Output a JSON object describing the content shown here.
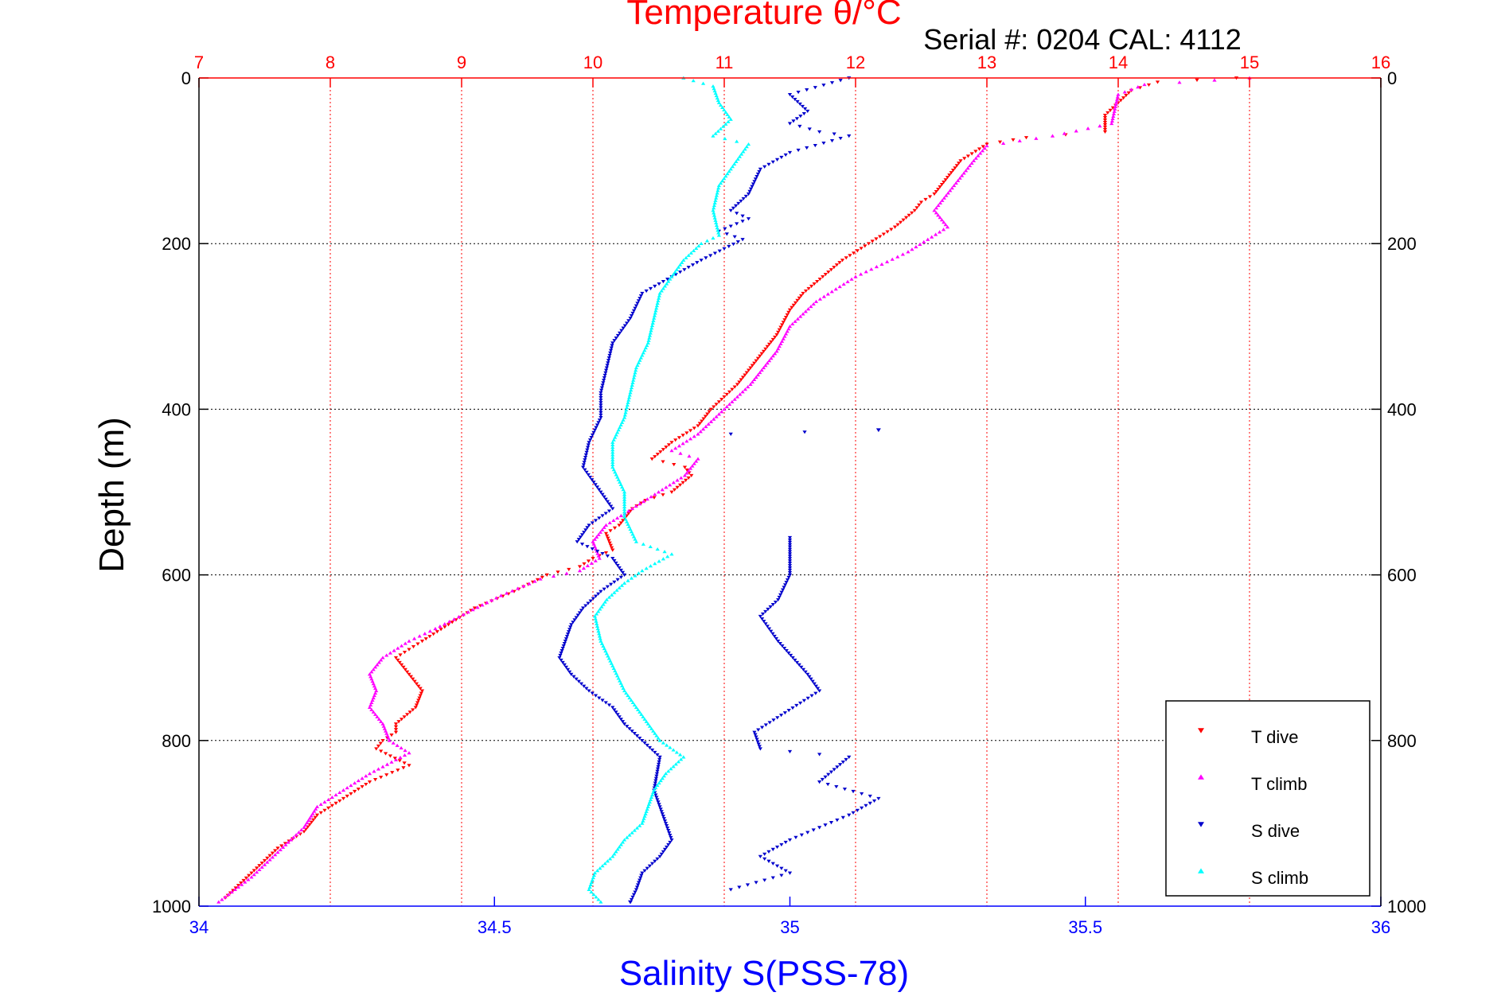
{
  "chart_data": {
    "type": "scatter",
    "title": "Temperature θ/°C",
    "subtitle": "Serial #: 0204  CAL: 4112",
    "xlabel": "Salinity S(PSS-78)",
    "ylabel": "Depth (m)",
    "x_temperature": {
      "lim": [
        7,
        16
      ],
      "ticks": [
        "7",
        "8",
        "9",
        "10",
        "11",
        "12",
        "13",
        "14",
        "15",
        "16"
      ]
    },
    "x_salinity": {
      "lim": [
        34,
        36
      ],
      "ticks": [
        "34",
        "34.5",
        "35",
        "35.5",
        "36"
      ]
    },
    "y_depth": {
      "lim": [
        0,
        1000
      ],
      "reversed": true,
      "ticks_left": [
        "0",
        "200",
        "400",
        "600",
        "800",
        "1000"
      ],
      "ticks_right": [
        "0",
        "200",
        "400",
        "600",
        "800",
        "1000"
      ]
    },
    "grid": true,
    "legend": {
      "placement": "bottom-right"
    },
    "series": [
      {
        "name": "T dive",
        "axis": "temperature",
        "color": "#ff0000",
        "marker": "triangle-down",
        "points": [
          [
            14.9,
            0
          ],
          [
            14.3,
            5
          ],
          [
            14.1,
            15
          ],
          [
            13.9,
            45
          ],
          [
            13.9,
            65
          ],
          [
            13.3,
            72
          ],
          [
            13.0,
            80
          ],
          [
            12.8,
            100
          ],
          [
            12.7,
            120
          ],
          [
            12.6,
            140
          ],
          [
            12.5,
            150
          ],
          [
            12.45,
            160
          ],
          [
            12.3,
            180
          ],
          [
            12.1,
            200
          ],
          [
            11.9,
            220
          ],
          [
            11.75,
            240
          ],
          [
            11.6,
            260
          ],
          [
            11.5,
            280
          ],
          [
            11.4,
            310
          ],
          [
            11.3,
            330
          ],
          [
            11.2,
            350
          ],
          [
            11.1,
            370
          ],
          [
            11.0,
            385
          ],
          [
            10.9,
            400
          ],
          [
            10.8,
            420
          ],
          [
            10.6,
            440
          ],
          [
            10.45,
            460
          ],
          [
            10.7,
            470
          ],
          [
            10.75,
            480
          ],
          [
            10.6,
            500
          ],
          [
            10.4,
            510
          ],
          [
            10.3,
            520
          ],
          [
            10.2,
            540
          ],
          [
            10.1,
            550
          ],
          [
            10.15,
            570
          ],
          [
            10.0,
            580
          ],
          [
            9.9,
            590
          ],
          [
            9.65,
            600
          ],
          [
            9.4,
            620
          ],
          [
            9.1,
            640
          ],
          [
            8.9,
            660
          ],
          [
            8.7,
            680
          ],
          [
            8.6,
            690
          ],
          [
            8.5,
            700
          ],
          [
            8.6,
            720
          ],
          [
            8.7,
            740
          ],
          [
            8.65,
            760
          ],
          [
            8.5,
            780
          ],
          [
            8.5,
            790
          ],
          [
            8.4,
            800
          ],
          [
            8.35,
            810
          ],
          [
            8.6,
            830
          ],
          [
            8.3,
            850
          ],
          [
            8.1,
            870
          ],
          [
            7.9,
            890
          ],
          [
            7.8,
            910
          ],
          [
            7.6,
            930
          ],
          [
            7.4,
            960
          ],
          [
            7.2,
            990
          ]
        ]
      },
      {
        "name": "T climb",
        "axis": "temperature",
        "color": "#ff00ff",
        "marker": "triangle-up",
        "points": [
          [
            15.0,
            0
          ],
          [
            14.2,
            8
          ],
          [
            14.0,
            20
          ],
          [
            13.95,
            55
          ],
          [
            13.5,
            70
          ],
          [
            13.0,
            82
          ],
          [
            12.9,
            100
          ],
          [
            12.75,
            130
          ],
          [
            12.6,
            160
          ],
          [
            12.7,
            180
          ],
          [
            12.4,
            210
          ],
          [
            12.0,
            240
          ],
          [
            11.7,
            270
          ],
          [
            11.5,
            300
          ],
          [
            11.4,
            330
          ],
          [
            11.3,
            350
          ],
          [
            11.2,
            370
          ],
          [
            11.1,
            385
          ],
          [
            11.0,
            400
          ],
          [
            10.8,
            430
          ],
          [
            10.6,
            450
          ],
          [
            10.8,
            460
          ],
          [
            10.7,
            480
          ],
          [
            10.5,
            500
          ],
          [
            10.3,
            520
          ],
          [
            10.1,
            540
          ],
          [
            10.0,
            560
          ],
          [
            10.05,
            580
          ],
          [
            9.9,
            595
          ],
          [
            9.6,
            605
          ],
          [
            9.3,
            625
          ],
          [
            9.05,
            645
          ],
          [
            8.8,
            665
          ],
          [
            8.6,
            680
          ],
          [
            8.4,
            700
          ],
          [
            8.3,
            720
          ],
          [
            8.35,
            740
          ],
          [
            8.3,
            760
          ],
          [
            8.4,
            780
          ],
          [
            8.45,
            800
          ],
          [
            8.6,
            815
          ],
          [
            8.3,
            840
          ],
          [
            8.1,
            860
          ],
          [
            7.9,
            880
          ],
          [
            7.8,
            905
          ],
          [
            7.6,
            935
          ],
          [
            7.4,
            965
          ],
          [
            7.15,
            995
          ]
        ]
      },
      {
        "name": "S dive",
        "axis": "salinity",
        "color": "#0000cc",
        "marker": "triangle-down",
        "points": [
          [
            35.1,
            0
          ],
          [
            35.0,
            20
          ],
          [
            35.03,
            40
          ],
          [
            35.0,
            55
          ],
          [
            35.05,
            65
          ],
          [
            35.1,
            70
          ],
          [
            35.0,
            90
          ],
          [
            34.95,
            110
          ],
          [
            34.93,
            140
          ],
          [
            34.9,
            160
          ],
          [
            34.93,
            170
          ],
          [
            34.88,
            185
          ],
          [
            34.92,
            195
          ],
          [
            34.85,
            220
          ],
          [
            34.8,
            240
          ],
          [
            34.75,
            260
          ],
          [
            34.73,
            290
          ],
          [
            34.7,
            320
          ],
          [
            34.69,
            350
          ],
          [
            34.68,
            380
          ],
          [
            34.68,
            410
          ],
          [
            34.66,
            440
          ],
          [
            34.65,
            470
          ],
          [
            34.68,
            500
          ],
          [
            34.7,
            520
          ],
          [
            34.66,
            540
          ],
          [
            34.64,
            560
          ],
          [
            34.7,
            580
          ],
          [
            34.72,
            600
          ],
          [
            34.68,
            620
          ],
          [
            34.65,
            640
          ],
          [
            34.63,
            660
          ],
          [
            34.62,
            680
          ],
          [
            34.61,
            700
          ],
          [
            34.63,
            720
          ],
          [
            34.66,
            740
          ],
          [
            34.7,
            760
          ],
          [
            34.72,
            780
          ],
          [
            34.75,
            800
          ],
          [
            34.78,
            820
          ],
          [
            34.77,
            860
          ],
          [
            34.79,
            900
          ],
          [
            34.8,
            920
          ],
          [
            34.78,
            940
          ],
          [
            34.75,
            960
          ],
          [
            34.74,
            980
          ],
          [
            34.73,
            995
          ],
          [
            34.9,
            430
          ],
          [
            35.15,
            425
          ],
          [
            35.0,
            555
          ],
          [
            35.0,
            600
          ],
          [
            34.98,
            630
          ],
          [
            34.95,
            650
          ],
          [
            34.98,
            680
          ],
          [
            35.03,
            720
          ],
          [
            35.05,
            740
          ],
          [
            34.94,
            790
          ],
          [
            34.95,
            810
          ],
          [
            35.1,
            820
          ],
          [
            35.05,
            850
          ],
          [
            35.15,
            870
          ],
          [
            35.1,
            890
          ],
          [
            35.0,
            920
          ],
          [
            34.95,
            940
          ],
          [
            35.0,
            960
          ],
          [
            34.9,
            980
          ]
        ]
      },
      {
        "name": "S climb",
        "axis": "salinity",
        "color": "#00ffff",
        "marker": "triangle-up",
        "points": [
          [
            34.82,
            0
          ],
          [
            34.87,
            10
          ],
          [
            34.88,
            30
          ],
          [
            34.9,
            50
          ],
          [
            34.87,
            70
          ],
          [
            34.93,
            80
          ],
          [
            34.9,
            110
          ],
          [
            34.88,
            130
          ],
          [
            34.87,
            160
          ],
          [
            34.88,
            190
          ],
          [
            34.85,
            200
          ],
          [
            34.82,
            220
          ],
          [
            34.8,
            240
          ],
          [
            34.78,
            260
          ],
          [
            34.77,
            290
          ],
          [
            34.76,
            320
          ],
          [
            34.74,
            350
          ],
          [
            34.73,
            380
          ],
          [
            34.72,
            410
          ],
          [
            34.7,
            440
          ],
          [
            34.7,
            470
          ],
          [
            34.72,
            500
          ],
          [
            34.72,
            530
          ],
          [
            34.74,
            560
          ],
          [
            34.8,
            575
          ],
          [
            34.75,
            595
          ],
          [
            34.72,
            610
          ],
          [
            34.69,
            630
          ],
          [
            34.67,
            650
          ],
          [
            34.68,
            680
          ],
          [
            34.7,
            710
          ],
          [
            34.72,
            740
          ],
          [
            34.74,
            760
          ],
          [
            34.76,
            780
          ],
          [
            34.78,
            800
          ],
          [
            34.82,
            820
          ],
          [
            34.79,
            840
          ],
          [
            34.77,
            860
          ],
          [
            34.76,
            880
          ],
          [
            34.75,
            900
          ],
          [
            34.72,
            920
          ],
          [
            34.7,
            940
          ],
          [
            34.67,
            960
          ],
          [
            34.66,
            980
          ],
          [
            34.68,
            995
          ]
        ]
      }
    ]
  }
}
